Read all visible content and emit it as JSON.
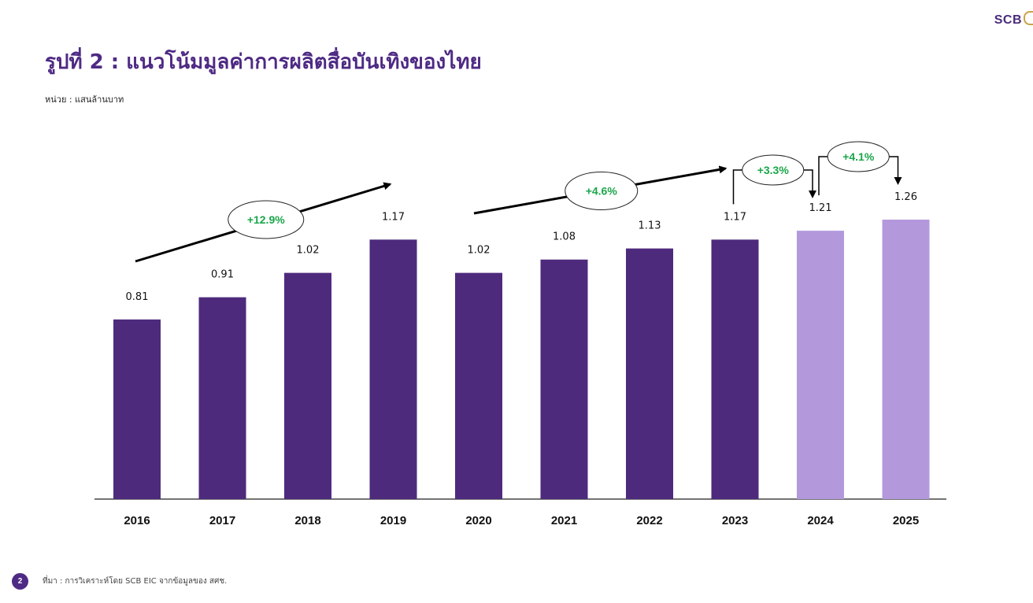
{
  "brand": {
    "logo_text": "SCB",
    "accent": "#c9a24a"
  },
  "title": "รูปที่ 2 : แนวโน้มมูลค่าการผลิตสื่อบันเทิงของไทย",
  "unit_label": "หน่วย : แสนล้านบาท",
  "footer": {
    "page_number": "2",
    "source": "ที่มา : การวิเคราะห์โดย SCB EIC จากข้อมูลของ สศช."
  },
  "colors": {
    "actual": "#4e2a7d",
    "forecast": "#b399dc",
    "growth_text": "#1aa64a",
    "title": "#4e2a84"
  },
  "chart_data": {
    "type": "bar",
    "title": "",
    "xlabel": "",
    "ylabel": "",
    "categories": [
      "2016",
      "2017",
      "2018",
      "2019",
      "2020",
      "2021",
      "2022",
      "2023",
      "2024",
      "2025"
    ],
    "values": [
      0.81,
      0.91,
      1.02,
      1.17,
      1.02,
      1.08,
      1.13,
      1.17,
      1.21,
      1.26
    ],
    "value_labels": [
      "0.81",
      "0.91",
      "1.02",
      "1.17",
      "1.02",
      "1.08",
      "1.13",
      "1.17",
      "1.21",
      "1.26"
    ],
    "forecast_from": "2024",
    "ylim": [
      0,
      1.26
    ],
    "grid": false,
    "annotations": [
      {
        "label": "+12.9%",
        "from": "2016",
        "to": "2019"
      },
      {
        "label": "+4.6%",
        "from": "2020",
        "to": "2023"
      },
      {
        "label": "+3.3%",
        "from": "2023",
        "to": "2024"
      },
      {
        "label": "+4.1%",
        "from": "2024",
        "to": "2025"
      }
    ]
  }
}
